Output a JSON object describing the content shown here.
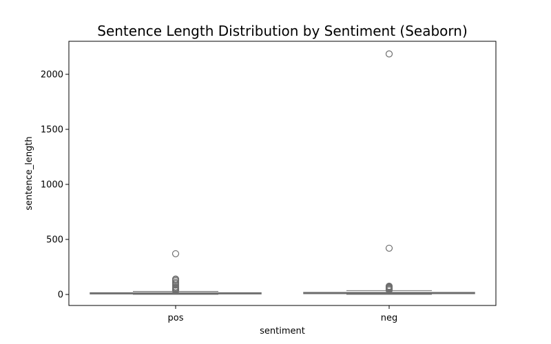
{
  "chart_data": {
    "type": "box",
    "title": "Sentence Length Distribution by Sentiment (Seaborn)",
    "xlabel": "sentiment",
    "ylabel": "sentence_length",
    "categories": [
      "pos",
      "neg"
    ],
    "ylim": [
      -100,
      2300
    ],
    "yticks": [
      0,
      500,
      1000,
      1500,
      2000
    ],
    "grid": false,
    "colors": {
      "box_fill": "#9e9e9e",
      "box_edge": "#6e6e6e",
      "outlier_edge": "#6e6e6e"
    },
    "boxes": [
      {
        "category": "pos",
        "whisker_low": 1,
        "q1": 6,
        "median": 10,
        "q3": 15,
        "whisker_high": 28,
        "outliers": [
          35,
          40,
          48,
          55,
          62,
          70,
          85,
          100,
          110,
          125,
          135,
          140,
          370
        ]
      },
      {
        "category": "neg",
        "whisker_low": 1,
        "q1": 8,
        "median": 12,
        "q3": 18,
        "whisker_high": 35,
        "outliers": [
          40,
          48,
          55,
          60,
          65,
          70,
          75,
          420,
          2185
        ]
      }
    ]
  }
}
